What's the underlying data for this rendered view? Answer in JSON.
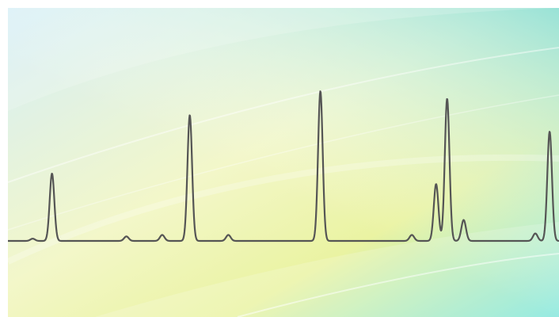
{
  "colors": {
    "trace": "#555555",
    "bg_top_left": "#d4eef7",
    "bg_top_right": "#8fe0d9",
    "bg_mid": "#f3f7c9",
    "bg_yellow": "#eaf3a2",
    "bg_bottom_right": "#7fe6dc"
  },
  "chart_data": {
    "type": "line",
    "title": "",
    "xlabel": "",
    "ylabel": "",
    "grid": false,
    "legend": "none",
    "series": [
      {
        "peaks": [
          {
            "x": 0.045,
            "height": 0.015
          },
          {
            "x": 0.08,
            "height": 0.45
          },
          {
            "x": 0.215,
            "height": 0.03
          },
          {
            "x": 0.28,
            "height": 0.04
          },
          {
            "x": 0.33,
            "height": 0.84
          },
          {
            "x": 0.4,
            "height": 0.04
          },
          {
            "x": 0.567,
            "height": 1.0
          },
          {
            "x": 0.733,
            "height": 0.04
          },
          {
            "x": 0.777,
            "height": 0.38
          },
          {
            "x": 0.797,
            "height": 0.95
          },
          {
            "x": 0.827,
            "height": 0.14
          },
          {
            "x": 0.957,
            "height": 0.05
          },
          {
            "x": 0.983,
            "height": 0.73
          }
        ]
      }
    ]
  }
}
